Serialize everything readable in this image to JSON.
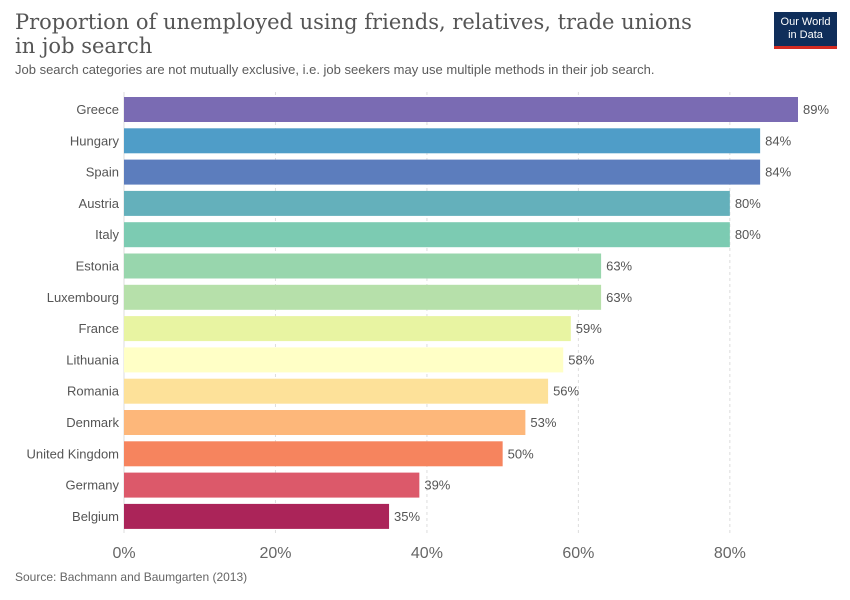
{
  "header": {
    "title": "Proportion of unemployed using friends, relatives, trade unions in job search",
    "subtitle": "Job search categories are not mutually exclusive, i.e. job seekers may use multiple methods in their job search."
  },
  "logo": {
    "line1": "Our World",
    "line2": "in Data"
  },
  "footer": {
    "source": "Source: Bachmann and Baumgarten (2013)"
  },
  "chart_data": {
    "type": "bar",
    "orientation": "horizontal",
    "categories": [
      "Greece",
      "Hungary",
      "Spain",
      "Austria",
      "Italy",
      "Estonia",
      "Luxembourg",
      "France",
      "Lithuania",
      "Romania",
      "Denmark",
      "United Kingdom",
      "Germany",
      "Belgium"
    ],
    "values": [
      89,
      84,
      84,
      80,
      80,
      63,
      63,
      59,
      58,
      56,
      53,
      50,
      39,
      35
    ],
    "value_labels": [
      "89%",
      "84%",
      "84%",
      "80%",
      "80%",
      "63%",
      "63%",
      "59%",
      "58%",
      "56%",
      "53%",
      "50%",
      "39%",
      "35%"
    ],
    "colors": [
      "#7a6bb3",
      "#4f9dc8",
      "#5c7dbd",
      "#64b0bb",
      "#7ccbb2",
      "#98d6ad",
      "#b6e0aa",
      "#e8f4a2",
      "#ffffc6",
      "#fde199",
      "#fdb77a",
      "#f6845e",
      "#dc596a",
      "#ab2459"
    ],
    "xlim": [
      0,
      89
    ],
    "xticks": [
      0,
      20,
      40,
      60,
      80
    ],
    "xtick_labels": [
      "0%",
      "20%",
      "40%",
      "60%",
      "80%"
    ],
    "grid": true
  }
}
